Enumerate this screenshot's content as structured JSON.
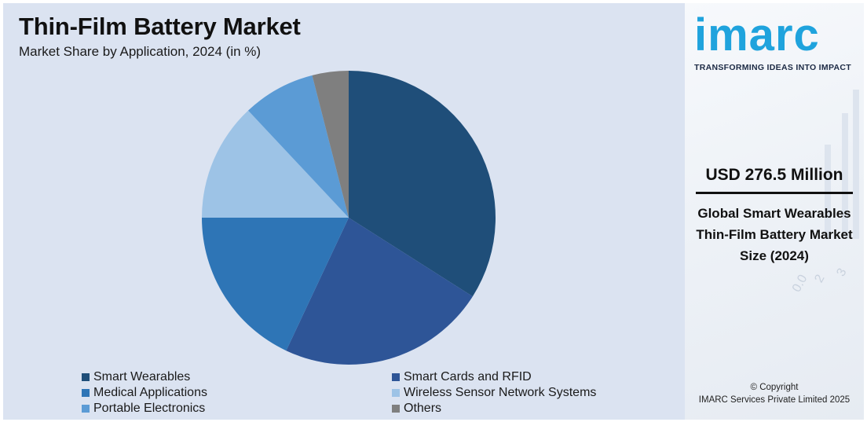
{
  "header": {
    "title": "Thin-Film Battery Market",
    "subtitle": "Market Share by Application, 2024 (in %)"
  },
  "chart_data": {
    "type": "pie",
    "title": "Thin-Film Battery Market",
    "subtitle": "Market Share by Application, 2024 (in %)",
    "categories": [
      "Smart Wearables",
      "Smart Cards and RFID",
      "Medical Applications",
      "Wireless Sensor Network Systems",
      "Portable Electronics",
      "Others"
    ],
    "values": [
      34,
      23,
      18,
      13,
      8,
      4
    ],
    "colors": [
      "#1f4e79",
      "#2e5597",
      "#2e75b6",
      "#9dc3e6",
      "#5b9bd5",
      "#7f7f7f"
    ],
    "legend_position": "bottom"
  },
  "side": {
    "logo": "imarc",
    "tagline": "TRANSFORMING IDEAS INTO IMPACT",
    "market_size": "USD 276.5 Million",
    "description": "Global Smart Wearables Thin-Film Battery Market Size (2024)",
    "copyright_line1": "© Copyright",
    "copyright_line2": "IMARC Services Private Limited 2025"
  }
}
